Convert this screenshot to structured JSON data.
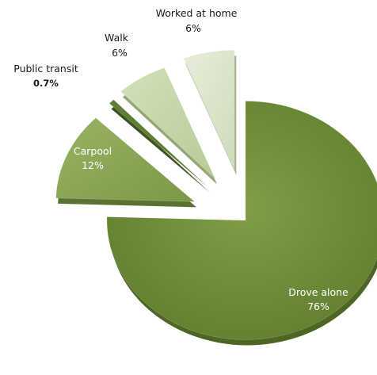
{
  "chart_data": {
    "type": "pie",
    "exploded": true,
    "style": "3d",
    "slices": [
      {
        "label": "Drove alone",
        "value_label": "76%",
        "value": 76,
        "color": "#6f8f3c",
        "side_color": "#4d6626",
        "label_position": "inside"
      },
      {
        "label": "Carpool",
        "value_label": "12%",
        "value": 12,
        "color": "#86a452",
        "side_color": "#5a7332",
        "label_position": "inside"
      },
      {
        "label": "Public transit",
        "value_label": "0.7%",
        "value": 0.7,
        "color": "#5e7e34",
        "side_color": "#3e5421",
        "label_position": "outside"
      },
      {
        "label": "Walk",
        "value_label": "6%",
        "value": 6,
        "color": "#c6d7a9",
        "side_color": "#93a676",
        "label_position": "outside"
      },
      {
        "label": "Worked at home",
        "value_label": "6%",
        "value": 6,
        "color": "#dde7cc",
        "side_color": "#a7b394",
        "label_position": "outside"
      }
    ]
  }
}
